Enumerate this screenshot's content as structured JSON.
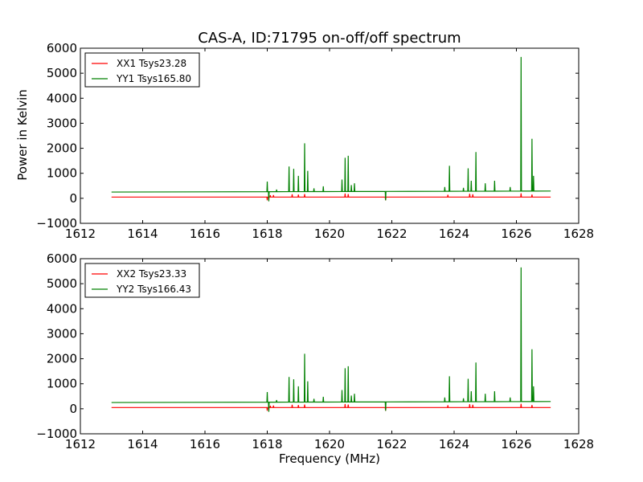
{
  "chart_data": [
    {
      "type": "line",
      "title": "CAS-A, ID:71795 on-off/off spectrum",
      "xlabel": "",
      "ylabel": "Power in Kelvin",
      "xlim": [
        1612,
        1628
      ],
      "ylim": [
        -1000,
        6000
      ],
      "xticks": [
        1612,
        1614,
        1616,
        1618,
        1620,
        1622,
        1624,
        1626,
        1628
      ],
      "yticks": [
        -1000,
        0,
        1000,
        2000,
        3000,
        4000,
        5000,
        6000
      ],
      "grid": false,
      "legend_position": "top-left",
      "series": [
        {
          "name": "XX1 Tsys23.28",
          "color": "#ff0000",
          "baseline": 50,
          "x_range": [
            1613.0,
            1627.1
          ],
          "spikes": [
            {
              "x": 1618.0,
              "y": -80
            },
            {
              "x": 1618.1,
              "y": 120
            },
            {
              "x": 1618.2,
              "y": 130
            },
            {
              "x": 1618.8,
              "y": 160
            },
            {
              "x": 1619.0,
              "y": 150
            },
            {
              "x": 1619.2,
              "y": 170
            },
            {
              "x": 1620.5,
              "y": 190
            },
            {
              "x": 1620.6,
              "y": 170
            },
            {
              "x": 1621.8,
              "y": -80
            },
            {
              "x": 1623.8,
              "y": 140
            },
            {
              "x": 1624.5,
              "y": 180
            },
            {
              "x": 1624.6,
              "y": 160
            },
            {
              "x": 1626.15,
              "y": 200
            },
            {
              "x": 1626.5,
              "y": 150
            }
          ]
        },
        {
          "name": "YY1 Tsys165.80",
          "color": "#008000",
          "baseline_start": 250,
          "baseline_end": 290,
          "x_range": [
            1613.0,
            1627.1
          ],
          "spikes": [
            {
              "x": 1618.0,
              "y": 670
            },
            {
              "x": 1618.05,
              "y": -120
            },
            {
              "x": 1618.3,
              "y": 350
            },
            {
              "x": 1618.7,
              "y": 1270
            },
            {
              "x": 1618.85,
              "y": 1180
            },
            {
              "x": 1619.0,
              "y": 900
            },
            {
              "x": 1619.2,
              "y": 2200
            },
            {
              "x": 1619.3,
              "y": 1100
            },
            {
              "x": 1619.5,
              "y": 400
            },
            {
              "x": 1619.8,
              "y": 480
            },
            {
              "x": 1620.4,
              "y": 750
            },
            {
              "x": 1620.5,
              "y": 1620
            },
            {
              "x": 1620.6,
              "y": 1700
            },
            {
              "x": 1620.7,
              "y": 530
            },
            {
              "x": 1620.8,
              "y": 600
            },
            {
              "x": 1621.8,
              "y": -80
            },
            {
              "x": 1623.7,
              "y": 450
            },
            {
              "x": 1623.85,
              "y": 1300
            },
            {
              "x": 1624.3,
              "y": 420
            },
            {
              "x": 1624.45,
              "y": 1200
            },
            {
              "x": 1624.55,
              "y": 700
            },
            {
              "x": 1624.7,
              "y": 1850
            },
            {
              "x": 1625.0,
              "y": 600
            },
            {
              "x": 1625.3,
              "y": 700
            },
            {
              "x": 1625.8,
              "y": 450
            },
            {
              "x": 1626.15,
              "y": 5650
            },
            {
              "x": 1626.5,
              "y": 2380
            },
            {
              "x": 1626.55,
              "y": 900
            }
          ]
        }
      ]
    },
    {
      "type": "line",
      "title": "",
      "xlabel": "Frequency (MHz)",
      "ylabel": "",
      "xlim": [
        1612,
        1628
      ],
      "ylim": [
        -1000,
        6000
      ],
      "xticks": [
        1612,
        1614,
        1616,
        1618,
        1620,
        1622,
        1624,
        1626,
        1628
      ],
      "yticks": [
        -1000,
        0,
        1000,
        2000,
        3000,
        4000,
        5000,
        6000
      ],
      "grid": false,
      "legend_position": "top-left",
      "series": [
        {
          "name": "XX2 Tsys23.33",
          "color": "#ff0000",
          "baseline": 50,
          "x_range": [
            1613.0,
            1627.1
          ],
          "spikes": [
            {
              "x": 1618.0,
              "y": -80
            },
            {
              "x": 1618.1,
              "y": 120
            },
            {
              "x": 1618.2,
              "y": 130
            },
            {
              "x": 1618.8,
              "y": 160
            },
            {
              "x": 1619.0,
              "y": 150
            },
            {
              "x": 1619.2,
              "y": 170
            },
            {
              "x": 1620.5,
              "y": 190
            },
            {
              "x": 1620.6,
              "y": 170
            },
            {
              "x": 1621.8,
              "y": -80
            },
            {
              "x": 1623.8,
              "y": 140
            },
            {
              "x": 1624.5,
              "y": 180
            },
            {
              "x": 1624.6,
              "y": 160
            },
            {
              "x": 1626.15,
              "y": 200
            },
            {
              "x": 1626.5,
              "y": 150
            }
          ]
        },
        {
          "name": "YY2 Tsys166.43",
          "color": "#008000",
          "baseline_start": 250,
          "baseline_end": 290,
          "x_range": [
            1613.0,
            1627.1
          ],
          "spikes": [
            {
              "x": 1618.0,
              "y": 670
            },
            {
              "x": 1618.05,
              "y": -120
            },
            {
              "x": 1618.3,
              "y": 350
            },
            {
              "x": 1618.7,
              "y": 1270
            },
            {
              "x": 1618.85,
              "y": 1180
            },
            {
              "x": 1619.0,
              "y": 900
            },
            {
              "x": 1619.2,
              "y": 2200
            },
            {
              "x": 1619.3,
              "y": 1100
            },
            {
              "x": 1619.5,
              "y": 400
            },
            {
              "x": 1619.8,
              "y": 480
            },
            {
              "x": 1620.4,
              "y": 750
            },
            {
              "x": 1620.5,
              "y": 1620
            },
            {
              "x": 1620.6,
              "y": 1700
            },
            {
              "x": 1620.7,
              "y": 530
            },
            {
              "x": 1620.8,
              "y": 600
            },
            {
              "x": 1621.8,
              "y": -80
            },
            {
              "x": 1623.7,
              "y": 450
            },
            {
              "x": 1623.85,
              "y": 1300
            },
            {
              "x": 1624.3,
              "y": 420
            },
            {
              "x": 1624.45,
              "y": 1200
            },
            {
              "x": 1624.55,
              "y": 700
            },
            {
              "x": 1624.7,
              "y": 1850
            },
            {
              "x": 1625.0,
              "y": 600
            },
            {
              "x": 1625.3,
              "y": 700
            },
            {
              "x": 1625.8,
              "y": 450
            },
            {
              "x": 1626.15,
              "y": 5650
            },
            {
              "x": 1626.5,
              "y": 2380
            },
            {
              "x": 1626.55,
              "y": 900
            }
          ]
        }
      ]
    }
  ]
}
